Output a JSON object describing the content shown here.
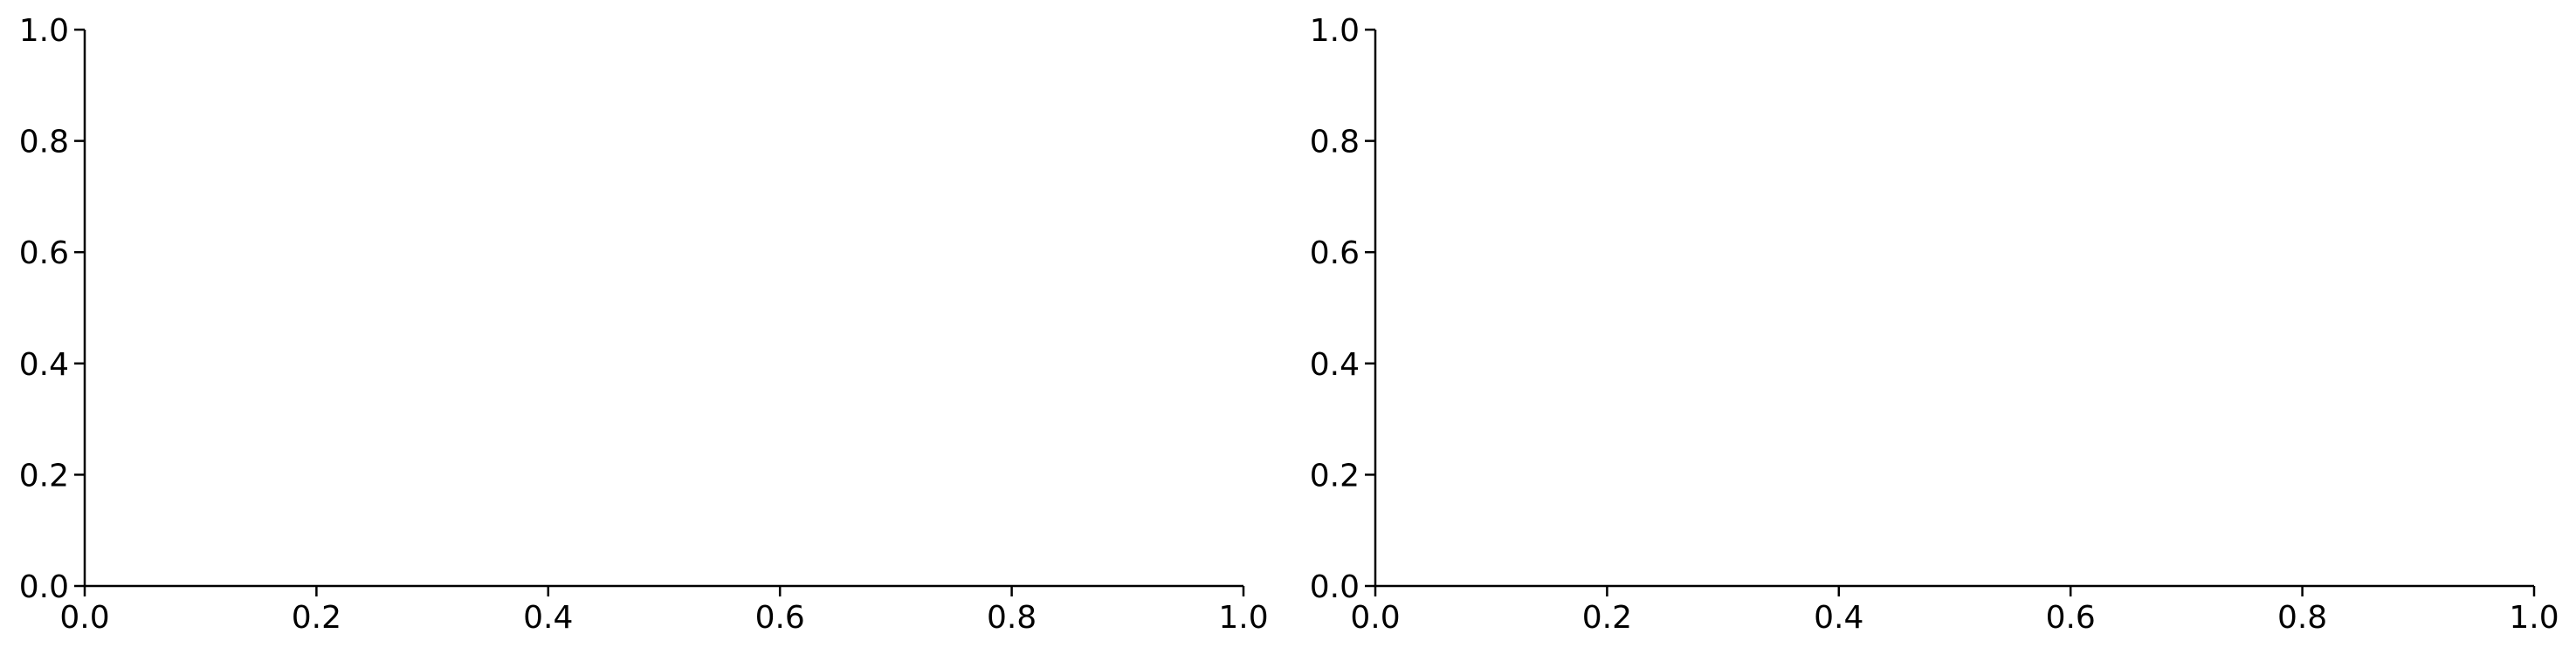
{
  "chart_data": [
    {
      "type": "line",
      "title": "",
      "xlabel": "",
      "ylabel": "",
      "xlim": [
        0.0,
        1.0
      ],
      "ylim": [
        0.0,
        1.0
      ],
      "xticks": [
        0.0,
        0.2,
        0.4,
        0.6,
        0.8,
        1.0
      ],
      "yticks": [
        0.0,
        0.2,
        0.4,
        0.6,
        0.8,
        1.0
      ],
      "xtick_labels": [
        "0.0",
        "0.2",
        "0.4",
        "0.6",
        "0.8",
        "1.0"
      ],
      "ytick_labels": [
        "0.0",
        "0.2",
        "0.4",
        "0.6",
        "0.8",
        "1.0"
      ],
      "grid": false,
      "visible_spines": [
        "left",
        "bottom"
      ],
      "series": []
    },
    {
      "type": "line",
      "title": "",
      "xlabel": "",
      "ylabel": "",
      "xlim": [
        0.0,
        1.0
      ],
      "ylim": [
        0.0,
        1.0
      ],
      "xticks": [
        0.0,
        0.2,
        0.4,
        0.6,
        0.8,
        1.0
      ],
      "yticks": [
        0.0,
        0.2,
        0.4,
        0.6,
        0.8,
        1.0
      ],
      "xtick_labels": [
        "0.0",
        "0.2",
        "0.4",
        "0.6",
        "0.8",
        "1.0"
      ],
      "ytick_labels": [
        "0.0",
        "0.2",
        "0.4",
        "0.6",
        "0.8",
        "1.0"
      ],
      "grid": false,
      "visible_spines": [
        "left",
        "bottom"
      ],
      "series": []
    }
  ]
}
